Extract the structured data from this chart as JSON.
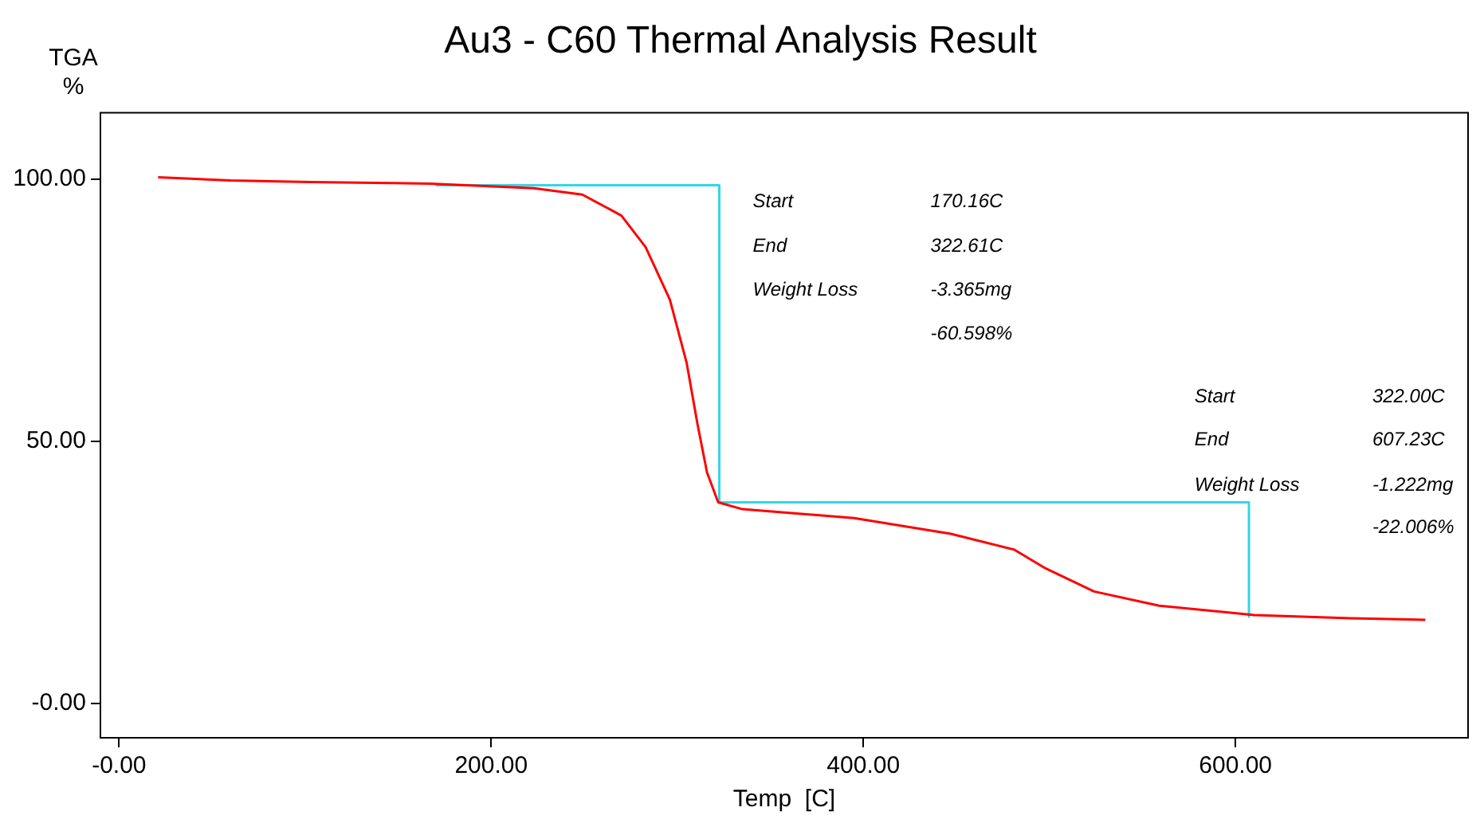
{
  "chart_data": {
    "type": "line",
    "title": "Au3 - C60 Thermal Analysis Result",
    "xlabel": "Temp  [C]",
    "ylabel": "TGA %",
    "xlim": [
      -10,
      725
    ],
    "ylim": [
      -6.6,
      112.6
    ],
    "xticks": [
      {
        "value": 0,
        "label": "-0.00"
      },
      {
        "value": 200,
        "label": "200.00"
      },
      {
        "value": 400,
        "label": "400.00"
      },
      {
        "value": 600,
        "label": "600.00"
      }
    ],
    "yticks": [
      {
        "value": 0,
        "label": "-0.00"
      },
      {
        "value": 50,
        "label": "50.00"
      },
      {
        "value": 100,
        "label": "100.00"
      }
    ],
    "grid": false,
    "legend": false,
    "marker": "none",
    "line_style": "solid",
    "series": [
      {
        "color": "#ff0000",
        "x": [
          21,
          60,
          103,
          167,
          223,
          249,
          270,
          283,
          296,
          305,
          311,
          316,
          322,
          335,
          395,
          447,
          481,
          498,
          524,
          559,
          610,
          662,
          702
        ],
        "values": [
          100.3,
          99.7,
          99.4,
          99.1,
          98.2,
          97,
          93,
          87,
          77,
          65,
          53,
          44,
          38.3,
          37,
          35.3,
          32.3,
          29.3,
          25.7,
          21.3,
          18.6,
          16.8,
          16.2,
          15.9
        ]
      },
      {
        "color": "#33d6e8",
        "x": [
          170.16,
          322.61,
          322.61,
          607.23,
          607.23
        ],
        "values": [
          98.8,
          98.8,
          38.3,
          38.3,
          16.5
        ]
      }
    ],
    "annotations": [
      "Start",
      "170.16C",
      "End",
      "322.61C",
      "Weight Loss",
      "-3.365mg",
      "-60.598%",
      "Start",
      "322.00C",
      "End",
      "607.23C",
      "Weight Loss",
      "-1.222mg",
      "-22.006%"
    ]
  }
}
